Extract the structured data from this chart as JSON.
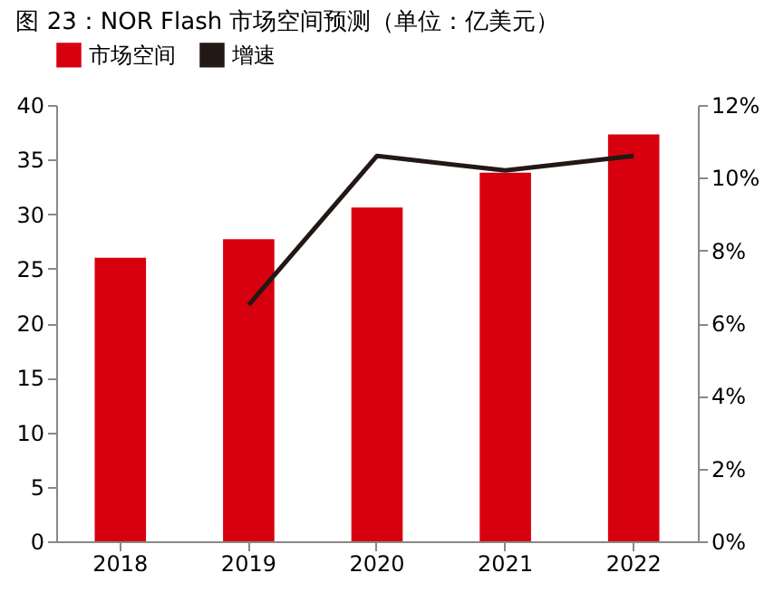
{
  "chart_data": {
    "type": "bar",
    "title": "图 23：NOR Flash 市场空间预测（单位：亿美元）",
    "categories": [
      "2018",
      "2019",
      "2020",
      "2021",
      "2022"
    ],
    "series": [
      {
        "name": "市场空间",
        "color": "#d7000f",
        "values": [
          26.0,
          27.7,
          30.6,
          33.8,
          37.3
        ]
      },
      {
        "name": "增速",
        "type": "line",
        "axis": "y2",
        "color": "#231815",
        "values": [
          null,
          6.5,
          10.6,
          10.2,
          10.6
        ]
      }
    ],
    "ylim": [
      0,
      40
    ],
    "yticks": [
      0,
      5,
      10,
      15,
      20,
      25,
      30,
      35,
      40
    ],
    "y2lim": [
      0,
      12
    ],
    "y2ticks": [
      {
        "value": 0,
        "label": "0%"
      },
      {
        "value": 2,
        "label": "2%"
      },
      {
        "value": 4,
        "label": "4%"
      },
      {
        "value": 6,
        "label": "6%"
      },
      {
        "value": 8,
        "label": "8%"
      },
      {
        "value": 10,
        "label": "10%"
      },
      {
        "value": 12,
        "label": "12%"
      }
    ],
    "grid": false,
    "legend": "top"
  }
}
